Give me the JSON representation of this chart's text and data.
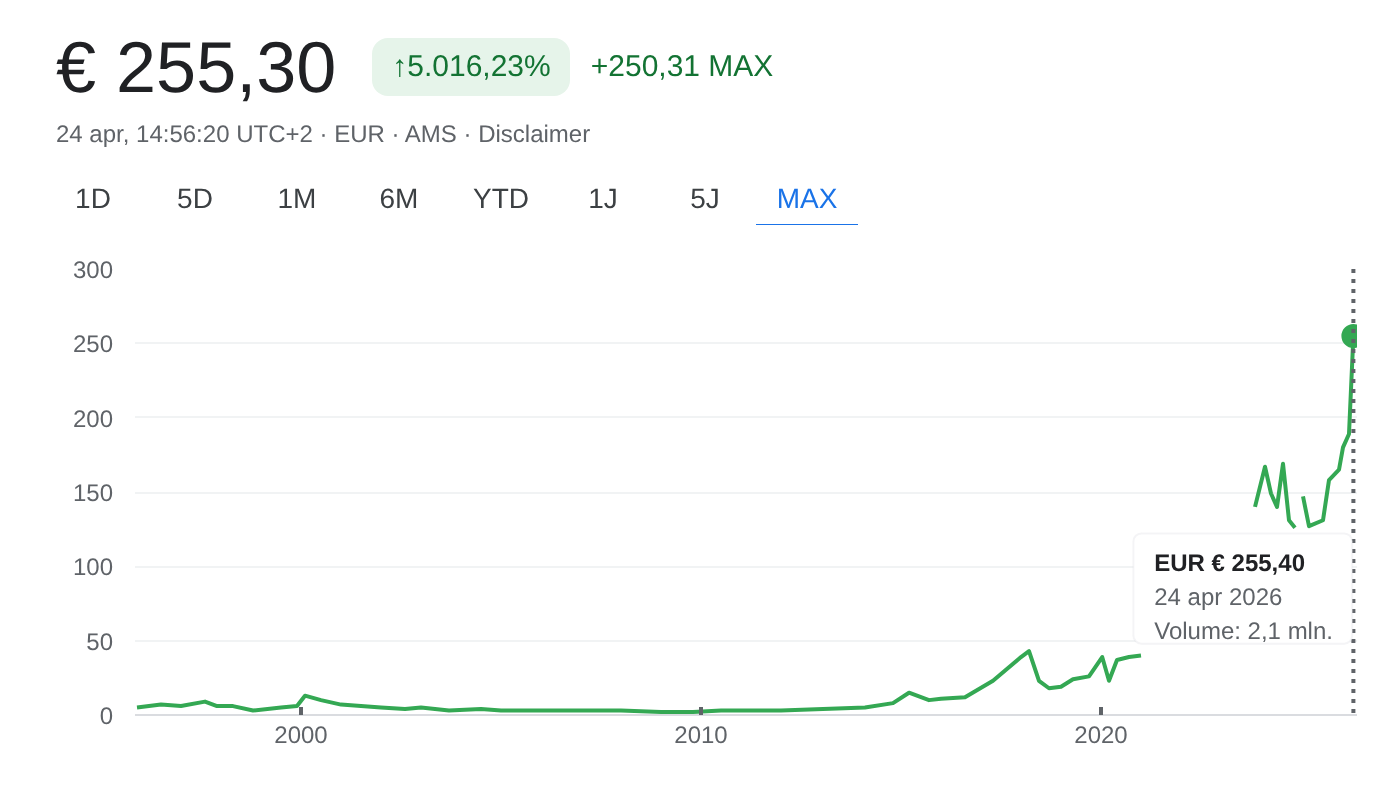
{
  "chart_data": {
    "type": "line",
    "title": "€ 255,30",
    "subtitle": "24 apr, 14:56:20 UTC+2 · EUR · AMS · Disclaimer",
    "annotations": [
      "↑5.016,23%",
      "+250,31 MAX",
      "1D",
      "5D",
      "1M",
      "6M",
      "YTD",
      "1J",
      "5J",
      "MAX",
      "EUR € 255,40",
      "24 apr 2026",
      "Volume: 2,1 mln."
    ],
    "x": [
      1995.9,
      1996.5,
      1997,
      1997.6,
      1997.9,
      1998.3,
      1998.8,
      1999.5,
      1999.9,
      2000.1,
      2000.5,
      2001,
      2002,
      2002.6,
      2003,
      2003.7,
      2004.5,
      2005,
      2006,
      2007,
      2008,
      2009,
      2009.8,
      2010.5,
      2012,
      2014.1,
      2014.8,
      2015.2,
      2015.7,
      2016,
      2016.6,
      2017.3,
      2018,
      2018.2,
      2018.45,
      2018.7,
      2019,
      2019.3,
      2019.7,
      2020.03,
      2020.2,
      2020.4,
      2020.7,
      2021,
      2022,
      2023.85,
      2024.1,
      2024.25,
      2024.4,
      2024.55,
      2024.7,
      2024.85,
      2024.95,
      2025.05,
      2025.2,
      2025.55,
      2025.7,
      2025.95,
      2026.05,
      2026.2,
      2026.31
    ],
    "series": [
      {
        "color": "#34a853",
        "values": [
          5,
          7,
          6,
          9,
          6,
          6,
          3,
          5,
          6,
          13,
          10,
          7,
          5,
          4,
          5,
          3,
          4,
          3,
          3,
          3,
          3,
          2,
          2,
          3,
          3,
          5,
          8,
          15,
          10,
          11,
          12,
          23,
          39,
          43,
          23,
          18,
          19,
          24,
          26,
          39,
          23,
          37,
          39,
          40,
          null,
          140,
          167,
          149,
          140,
          169,
          131,
          126,
          null,
          147,
          127,
          131,
          158,
          165,
          180,
          189,
          255
        ]
      }
    ],
    "xlim": [
      1995.85,
      2026.4
    ],
    "ylim": [
      0,
      300
    ],
    "xticks": [
      2000,
      2010,
      2020
    ],
    "yticks": [
      0,
      50,
      100,
      150,
      200,
      250,
      300
    ],
    "grid": "y",
    "marker": "none",
    "line_style": "solid",
    "ref_lines": [
      {
        "axis": "x",
        "value": 2026.31,
        "label": null,
        "color": "#5f6368",
        "line_style": "dotted"
      }
    ]
  }
}
